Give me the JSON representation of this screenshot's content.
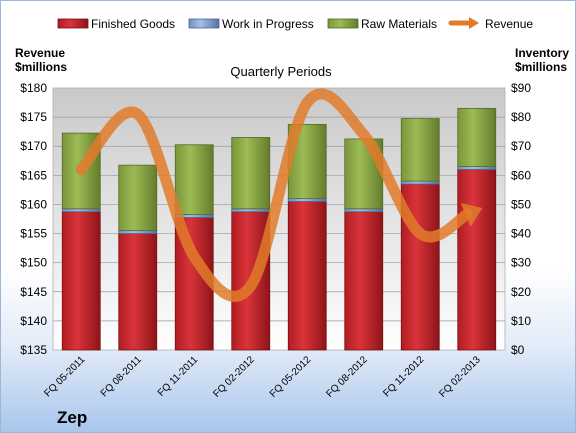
{
  "chart_data": {
    "type": "bar",
    "subtype": "stacked bar with line overlay on secondary axis",
    "title": "Quarterly Periods",
    "company": "Zep",
    "categories": [
      "FQ 05-2011",
      "FQ 08-2011",
      "FQ 11-2011",
      "FQ 02-2012",
      "FQ 05-2012",
      "FQ 08-2012",
      "FQ 11-2012",
      "FQ 02-2013"
    ],
    "left_axis": {
      "label_line1": "Revenue",
      "label_line2": "$millions",
      "min": 135,
      "max": 180,
      "step": 5,
      "ticks": [
        "$135",
        "$140",
        "$145",
        "$150",
        "$155",
        "$160",
        "$165",
        "$170",
        "$175",
        "$180"
      ]
    },
    "right_axis": {
      "label_line1": "Inventory",
      "label_line2": "$millions",
      "min": 0,
      "max": 90,
      "step": 10,
      "ticks": [
        "$0",
        "$10",
        "$20",
        "$30",
        "$40",
        "$50",
        "$60",
        "$70",
        "$80",
        "$90"
      ]
    },
    "series": [
      {
        "name": "Finished Goods",
        "axis": "right",
        "kind": "bar",
        "color": "#c0262b",
        "values": [
          47.5,
          40.0,
          45.5,
          47.5,
          51.0,
          47.5,
          57.0,
          62.0
        ]
      },
      {
        "name": "Work in Progress",
        "axis": "right",
        "kind": "bar",
        "color": "#7f9fd3",
        "values": [
          1.0,
          1.0,
          1.0,
          1.0,
          1.0,
          1.0,
          1.0,
          1.0
        ]
      },
      {
        "name": "Raw Materials",
        "axis": "right",
        "kind": "bar",
        "color": "#8fac4a",
        "values": [
          26.0,
          22.5,
          24.0,
          24.5,
          25.5,
          24.0,
          21.5,
          20.0
        ]
      },
      {
        "name": "Revenue",
        "axis": "left",
        "kind": "line",
        "color": "#e07b2a",
        "values": [
          166.0,
          175.5,
          151.0,
          146.0,
          177.5,
          172.0,
          155.0,
          159.0
        ]
      }
    ],
    "legend_position": "top",
    "grid": true
  }
}
